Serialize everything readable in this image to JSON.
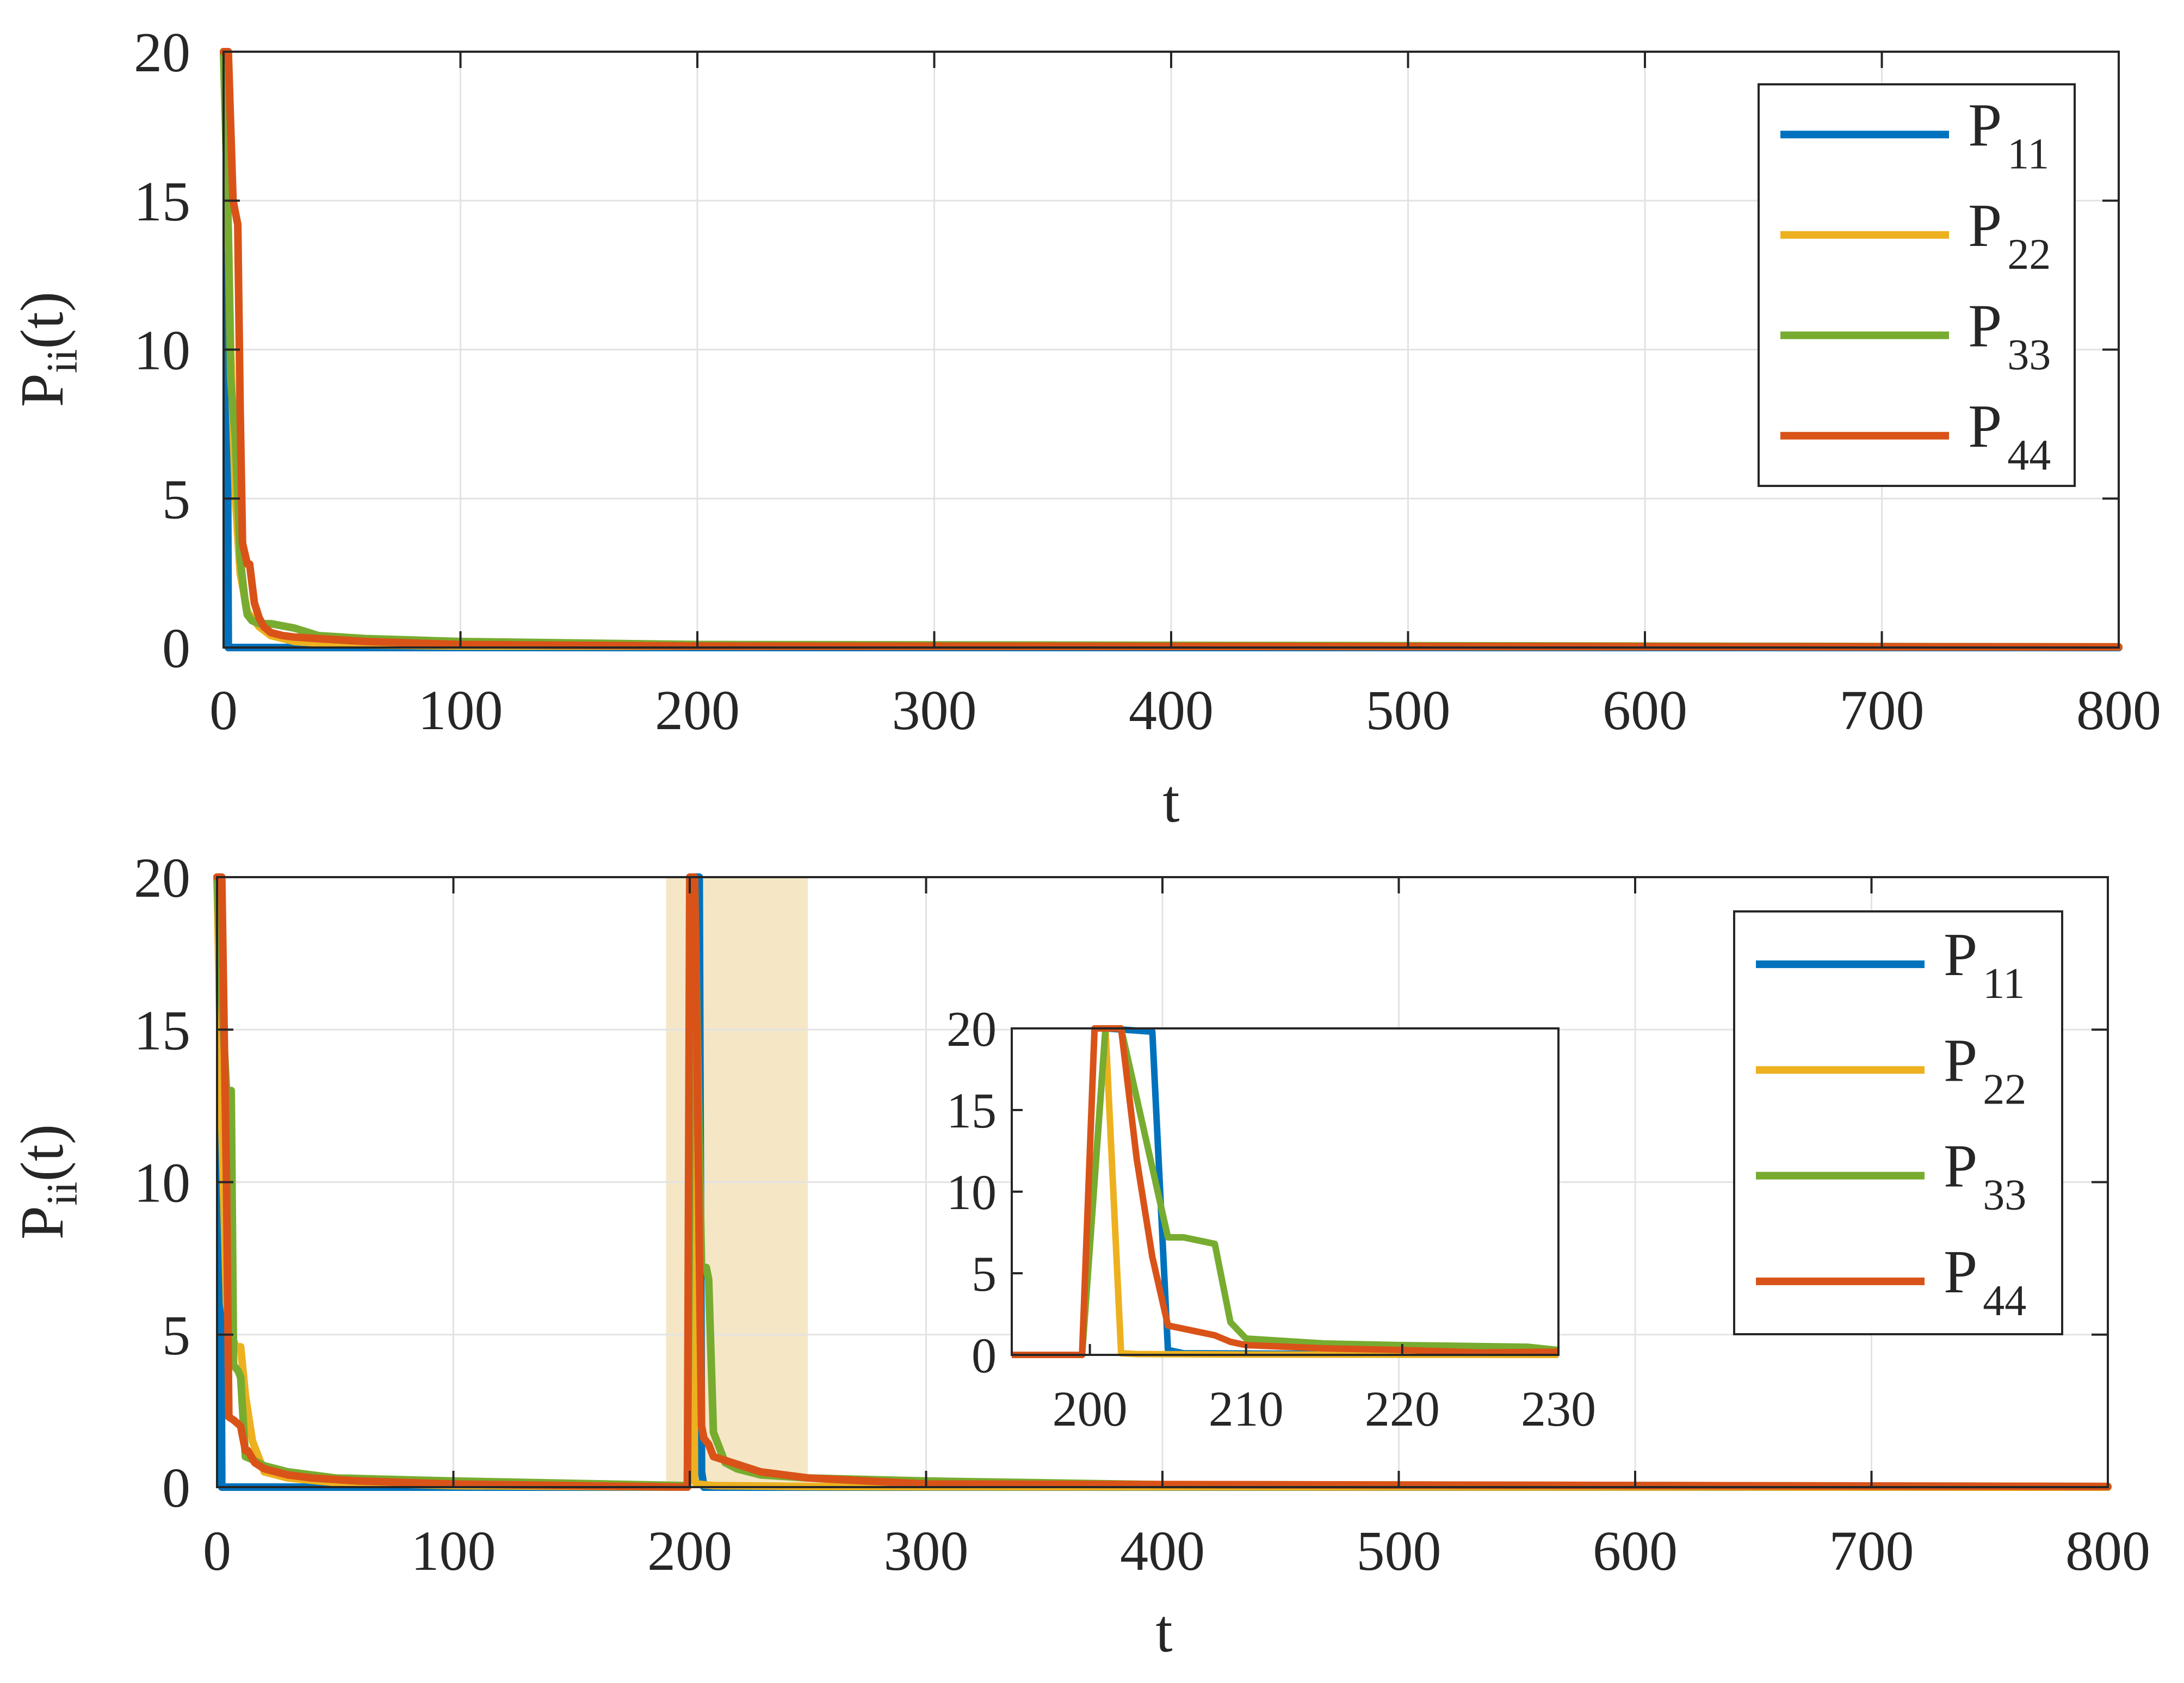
{
  "colors": {
    "P11": "#0072BD",
    "P22": "#EDB120",
    "P33": "#77AC30",
    "P44": "#D95319",
    "grid": "#e3e3e3",
    "axis": "#262626",
    "highlight": "#f5e7c6"
  },
  "chart_data": [
    {
      "type": "line",
      "xlabel": "t",
      "ylabel_main": "P",
      "ylabel_sub": "ii",
      "ylabel_tail": "(t)",
      "xlim": [
        0,
        800
      ],
      "ylim": [
        0,
        20
      ],
      "xticks": [
        0,
        100,
        200,
        300,
        400,
        500,
        600,
        700,
        800
      ],
      "yticks": [
        0,
        5,
        10,
        15,
        20
      ],
      "grid": true,
      "legend": {
        "position": "top-right"
      },
      "series": [
        {
          "name": "P",
          "sub": "11",
          "color": "#0072BD",
          "x": [
            0,
            1,
            2,
            10,
            30,
            800
          ],
          "y": [
            20,
            20,
            0,
            0,
            0,
            0
          ]
        },
        {
          "name": "P",
          "sub": "22",
          "color": "#EDB120",
          "x": [
            0,
            2,
            3,
            5,
            7,
            10,
            15,
            20,
            30,
            50,
            100,
            800
          ],
          "y": [
            20,
            14,
            10,
            5,
            2.5,
            1.2,
            0.7,
            0.4,
            0.2,
            0.1,
            0.05,
            0.02
          ]
        },
        {
          "name": "P",
          "sub": "33",
          "color": "#77AC30",
          "x": [
            0,
            2,
            3,
            5,
            7,
            9,
            10,
            12,
            15,
            20,
            30,
            40,
            60,
            100,
            200,
            800
          ],
          "y": [
            20,
            14,
            9,
            7,
            3,
            1.6,
            1.1,
            0.9,
            0.8,
            0.8,
            0.65,
            0.4,
            0.3,
            0.2,
            0.1,
            0.02
          ]
        },
        {
          "name": "P",
          "sub": "44",
          "color": "#D95319",
          "x": [
            0,
            2,
            4,
            6,
            7,
            8,
            10,
            11,
            13,
            15,
            17,
            20,
            25,
            30,
            40,
            60,
            100,
            200,
            800
          ],
          "y": [
            20,
            20,
            15,
            14.2,
            8,
            3.5,
            2.8,
            2.8,
            1.5,
            1.0,
            0.7,
            0.5,
            0.4,
            0.35,
            0.3,
            0.2,
            0.1,
            0.05,
            0.02
          ]
        }
      ]
    },
    {
      "type": "line",
      "xlabel": "t",
      "ylabel_main": "P",
      "ylabel_sub": "ii",
      "ylabel_tail": "(t)",
      "xlim": [
        0,
        800
      ],
      "ylim": [
        0,
        20
      ],
      "xticks": [
        0,
        100,
        200,
        300,
        400,
        500,
        600,
        700,
        800
      ],
      "yticks": [
        0,
        5,
        10,
        15,
        20
      ],
      "grid": true,
      "highlight_range": [
        190,
        250
      ],
      "legend": {
        "position": "top-right"
      },
      "series": [
        {
          "name": "P",
          "sub": "11",
          "color": "#0072BD",
          "x": [
            0,
            1,
            2,
            199,
            201,
            204,
            205,
            206,
            800
          ],
          "y": [
            20,
            20,
            0,
            0,
            20,
            20,
            0.5,
            0,
            0
          ]
        },
        {
          "name": "P",
          "sub": "22",
          "color": "#EDB120",
          "x": [
            0,
            2,
            4,
            6,
            8,
            10,
            12,
            15,
            20,
            30,
            50,
            100,
            199,
            201,
            202,
            203,
            210,
            250,
            300,
            800
          ],
          "y": [
            20,
            12,
            6,
            5,
            4.6,
            4.6,
            3,
            1.5,
            0.5,
            0.3,
            0.15,
            0.05,
            0,
            20,
            0.2,
            0.1,
            0.05,
            0.02,
            0.01,
            0
          ]
        },
        {
          "name": "P",
          "sub": "33",
          "color": "#77AC30",
          "x": [
            0,
            2,
            4,
            6,
            7,
            9,
            10,
            12,
            15,
            20,
            30,
            50,
            100,
            199,
            201,
            202,
            205,
            207,
            208,
            210,
            215,
            220,
            230,
            250,
            300,
            400,
            800
          ],
          "y": [
            20,
            16,
            13,
            13,
            4,
            3.8,
            3.6,
            1.0,
            0.9,
            0.7,
            0.5,
            0.3,
            0.2,
            0.05,
            20,
            20,
            7.2,
            7.2,
            6.8,
            1.8,
            0.8,
            0.6,
            0.4,
            0.3,
            0.2,
            0.08,
            0.02
          ]
        },
        {
          "name": "P",
          "sub": "44",
          "color": "#D95319",
          "x": [
            0,
            2,
            4,
            5,
            7,
            10,
            12,
            13,
            16,
            20,
            25,
            30,
            40,
            60,
            100,
            199,
            200,
            202,
            203,
            204,
            205,
            206,
            208,
            210,
            230,
            250,
            300,
            800
          ],
          "y": [
            20,
            20,
            10,
            2.3,
            2.2,
            2.0,
            1.2,
            1.2,
            0.8,
            0.6,
            0.5,
            0.4,
            0.3,
            0.2,
            0.1,
            0,
            20,
            20,
            15,
            8,
            2,
            1.6,
            1.4,
            1.0,
            0.5,
            0.3,
            0.1,
            0.02
          ]
        }
      ],
      "inset": {
        "xlim": [
          195,
          230
        ],
        "ylim": [
          0,
          20
        ],
        "xticks": [
          200,
          210,
          220,
          230
        ],
        "yticks": [
          0,
          5,
          10,
          15,
          20
        ],
        "series": [
          {
            "color": "#0072BD",
            "x": [
              195,
              199.5,
              201,
              204,
              205,
              206,
              230
            ],
            "y": [
              0,
              0,
              20,
              19.8,
              0.3,
              0.1,
              0
            ]
          },
          {
            "color": "#EDB120",
            "x": [
              195,
              199.5,
              201,
              202,
              203,
              210,
              230
            ],
            "y": [
              0,
              0,
              20,
              0.1,
              0.05,
              0.02,
              0
            ]
          },
          {
            "color": "#77AC30",
            "x": [
              195,
              199.5,
              201,
              202,
              205,
              206,
              207,
              208,
              209,
              210,
              215,
              220,
              228,
              230
            ],
            "y": [
              0,
              0,
              20,
              20,
              7.2,
              7.2,
              7.0,
              6.8,
              2.0,
              1.0,
              0.7,
              0.6,
              0.5,
              0.3
            ]
          },
          {
            "color": "#D95319",
            "x": [
              195,
              199.5,
              200.3,
              202,
              203,
              204,
              205,
              206,
              207,
              208,
              209,
              210,
              215,
              220,
              225,
              230
            ],
            "y": [
              0,
              0,
              20,
              20,
              12,
              6,
              1.8,
              1.6,
              1.4,
              1.2,
              0.8,
              0.6,
              0.4,
              0.3,
              0.15,
              0.2
            ]
          }
        ]
      }
    }
  ]
}
